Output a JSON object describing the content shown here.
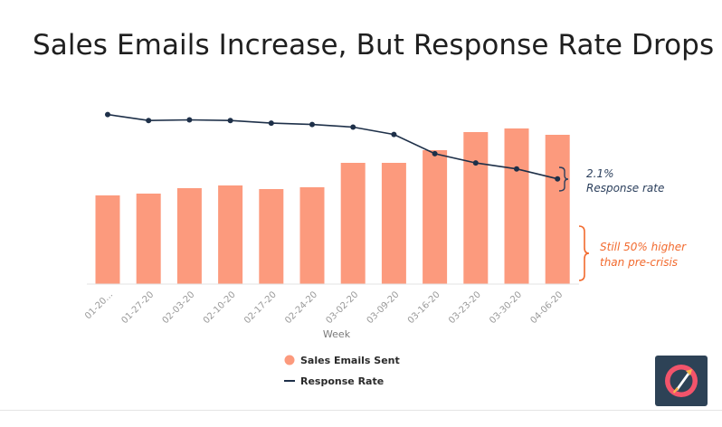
{
  "title": "Sales Emails Increase, But Response Rate Drops",
  "chart_data": {
    "type": "bar",
    "categories": [
      "01-20...",
      "01-27-20",
      "02-03-20",
      "02-10-20",
      "02-17-20",
      "02-24-20",
      "03-02-20",
      "03-09-20",
      "03-16-20",
      "03-23-20",
      "03-30-20",
      "04-06-20"
    ],
    "xlabel": "Week",
    "ylabel": "",
    "grid": false,
    "legend_position": "bottom",
    "series": [
      {
        "name": "Sales Emails Sent",
        "type": "bar",
        "color": "#fc9a7d",
        "values": [
          98,
          100,
          106,
          109,
          105,
          107,
          134,
          134,
          148,
          168,
          172,
          165
        ]
      },
      {
        "name": "Response Rate",
        "type": "line",
        "color": "#1e3049",
        "values": [
          3.11,
          3.02,
          3.03,
          3.02,
          2.98,
          2.96,
          2.92,
          2.81,
          2.52,
          2.38,
          2.29,
          2.14
        ]
      }
    ],
    "annotations": [
      {
        "text_lines": [
          "2.1%",
          "Response rate"
        ],
        "color": "#2b3f5c",
        "target": "Response Rate"
      },
      {
        "text_lines": [
          "Still 50% higher",
          "than pre-crisis"
        ],
        "color": "#f26a2e",
        "target": "Sales Emails Sent"
      }
    ]
  },
  "logo": {
    "name": "rocket-logo",
    "bg": "#2d4256",
    "ring": "#f2546b",
    "accent": "#f8b64c"
  }
}
